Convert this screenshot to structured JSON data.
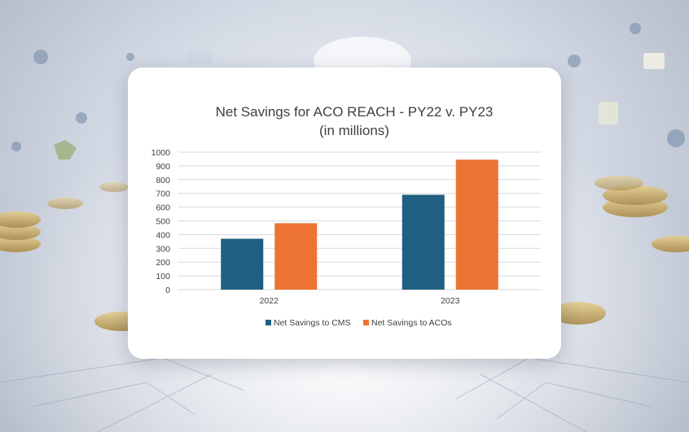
{
  "chart_data": {
    "type": "bar",
    "title": "Net Savings for ACO REACH - PY22 v. PY23",
    "subtitle": "(in millions)",
    "categories": [
      "2022",
      "2023"
    ],
    "series": [
      {
        "name": "Net Savings to CMS",
        "color": "#1f5f82",
        "values": [
          370,
          690
        ]
      },
      {
        "name": "Net Savings to ACOs",
        "color": "#ed7332",
        "values": [
          483,
          945
        ]
      }
    ],
    "ylim": [
      0,
      1000
    ],
    "yticks": [
      "0",
      "100",
      "200",
      "300",
      "400",
      "500",
      "600",
      "700",
      "800",
      "900",
      "1000"
    ],
    "xlabel": "",
    "ylabel": "",
    "grid": true,
    "legend": "bottom"
  },
  "colors": {
    "card": "#ffffff",
    "gridline": "#d9d9d9",
    "text": "#404040"
  }
}
